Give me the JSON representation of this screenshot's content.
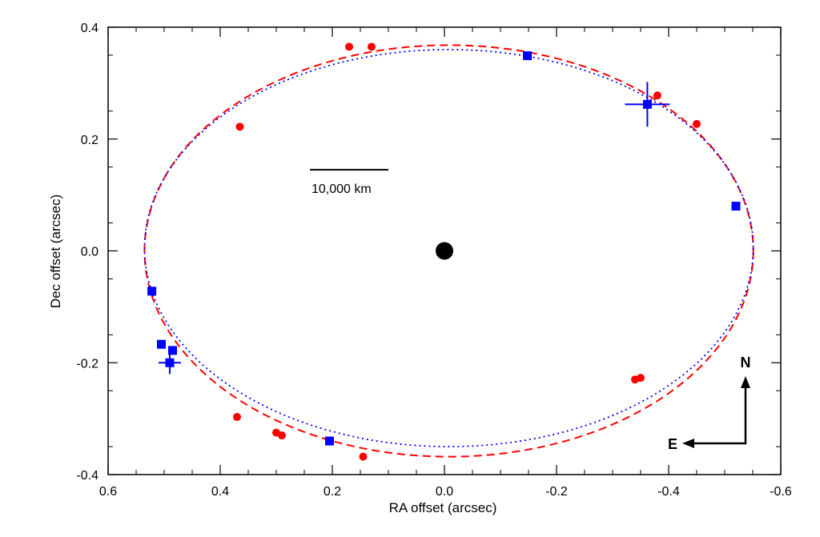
{
  "chart_data": {
    "type": "scatter",
    "title": "",
    "xlabel": "RA offset (arcsec)",
    "ylabel": "Dec offset (arcsec)",
    "xlim": [
      0.6,
      -0.6
    ],
    "ylim": [
      -0.4,
      0.4
    ],
    "x_ticks": [
      0.6,
      0.4,
      0.2,
      0.0,
      -0.2,
      -0.4,
      -0.6
    ],
    "x_tick_labels": [
      "0.6",
      "0.4",
      "0.2",
      "0.0",
      "-0.2",
      "-0.4",
      "-0.6"
    ],
    "y_ticks": [
      0.4,
      0.2,
      0.0,
      -0.2,
      -0.4
    ],
    "y_tick_labels": [
      "0.4",
      "0.2",
      "0.0",
      "-0.2",
      "-0.4"
    ],
    "grid": false,
    "central_body": {
      "x": 0.0,
      "y": 0.0,
      "color": "#000000"
    },
    "series": [
      {
        "marker": "circle",
        "color": "#ff0000",
        "points": [
          {
            "x": 0.13,
            "y": 0.365
          },
          {
            "x": 0.17,
            "y": 0.365
          },
          {
            "x": -0.38,
            "y": 0.278
          },
          {
            "x": -0.45,
            "y": 0.227
          },
          {
            "x": 0.365,
            "y": 0.222
          },
          {
            "x": -0.34,
            "y": -0.23
          },
          {
            "x": -0.35,
            "y": -0.227
          },
          {
            "x": 0.37,
            "y": -0.297
          },
          {
            "x": 0.3,
            "y": -0.325
          },
          {
            "x": 0.29,
            "y": -0.33
          },
          {
            "x": 0.145,
            "y": -0.368
          }
        ]
      },
      {
        "marker": "square",
        "color": "#0000ff",
        "points": [
          {
            "x": -0.148,
            "y": 0.349,
            "xerr": 0.005,
            "yerr": 0.007
          },
          {
            "x": -0.362,
            "y": 0.262,
            "xerr": 0.04,
            "yerr": 0.04
          },
          {
            "x": -0.52,
            "y": 0.08
          },
          {
            "x": 0.522,
            "y": -0.072,
            "xerr": 0.007,
            "yerr": 0.007
          },
          {
            "x": 0.505,
            "y": -0.167
          },
          {
            "x": 0.485,
            "y": -0.178
          },
          {
            "x": 0.49,
            "y": -0.2,
            "xerr": 0.02,
            "yerr": 0.02
          },
          {
            "x": 0.205,
            "y": -0.34
          }
        ]
      }
    ],
    "orbits": [
      {
        "style": "dashed",
        "color": "#ff0000",
        "cx": -0.008,
        "cy": 0.0,
        "rx": 0.543,
        "ry": 0.368
      },
      {
        "style": "dotted",
        "color": "#0000ff",
        "cx": -0.008,
        "cy": 0.005,
        "rx": 0.543,
        "ry": 0.355
      }
    ],
    "scale_bar": {
      "label": "10,000 km",
      "x_start": 0.24,
      "x_end": 0.1,
      "y": 0.145
    },
    "compass": {
      "north_label": "N",
      "east_label": "E"
    }
  }
}
